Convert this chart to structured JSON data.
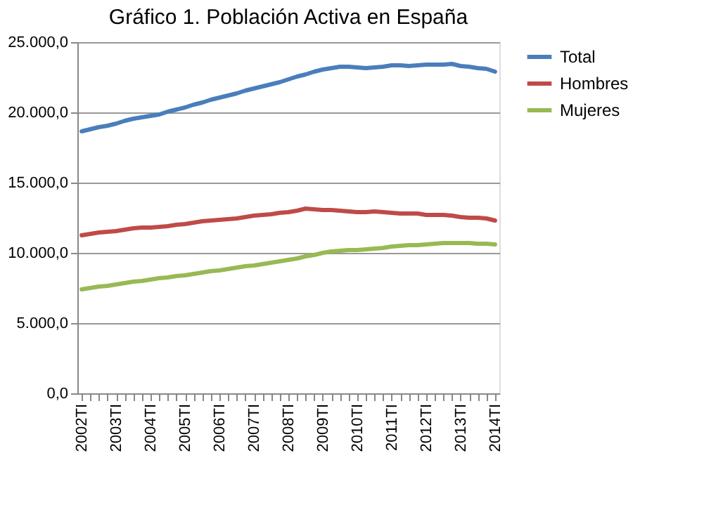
{
  "chart_data": {
    "type": "line",
    "title": "Gráfico 1. Población Activa en España",
    "categories": [
      "2002TI",
      null,
      null,
      null,
      "2003TI",
      null,
      null,
      null,
      "2004TI",
      null,
      null,
      null,
      "2005TI",
      null,
      null,
      null,
      "2006TI",
      null,
      null,
      null,
      "2007TI",
      null,
      null,
      null,
      "2008TI",
      null,
      null,
      null,
      "2009TI",
      null,
      null,
      null,
      "2010TI",
      null,
      null,
      null,
      "2011TI",
      null,
      null,
      null,
      "2012TI",
      null,
      null,
      null,
      "2013TI",
      null,
      null,
      null,
      "2014TI"
    ],
    "series": [
      {
        "name": "Total",
        "color": "#4a7ebb",
        "values": [
          18650,
          18800,
          18950,
          19050,
          19200,
          19400,
          19550,
          19650,
          19750,
          19850,
          20050,
          20200,
          20350,
          20550,
          20700,
          20900,
          21050,
          21200,
          21350,
          21550,
          21700,
          21850,
          22000,
          22150,
          22350,
          22550,
          22700,
          22900,
          23050,
          23150,
          23250,
          23250,
          23200,
          23150,
          23200,
          23250,
          23350,
          23350,
          23300,
          23350,
          23400,
          23400,
          23400,
          23450,
          23300,
          23250,
          23150,
          23100,
          22900
        ]
      },
      {
        "name": "Hombres",
        "color": "#be4b48",
        "values": [
          11250,
          11350,
          11450,
          11500,
          11550,
          11650,
          11750,
          11800,
          11800,
          11850,
          11900,
          12000,
          12050,
          12150,
          12250,
          12300,
          12350,
          12400,
          12450,
          12550,
          12650,
          12700,
          12750,
          12850,
          12900,
          13000,
          13150,
          13100,
          13050,
          13050,
          13000,
          12950,
          12900,
          12900,
          12950,
          12900,
          12850,
          12800,
          12800,
          12800,
          12700,
          12700,
          12700,
          12650,
          12550,
          12500,
          12500,
          12450,
          12300
        ]
      },
      {
        "name": "Mujeres",
        "color": "#98b954",
        "values": [
          7400,
          7500,
          7600,
          7650,
          7750,
          7850,
          7950,
          8000,
          8100,
          8200,
          8250,
          8350,
          8400,
          8500,
          8600,
          8700,
          8750,
          8850,
          8950,
          9050,
          9100,
          9200,
          9300,
          9400,
          9500,
          9600,
          9750,
          9850,
          10000,
          10100,
          10150,
          10200,
          10200,
          10250,
          10300,
          10350,
          10450,
          10500,
          10550,
          10550,
          10600,
          10650,
          10700,
          10700,
          10700,
          10700,
          10650,
          10650,
          10600
        ]
      }
    ],
    "ylim": [
      0,
      25000
    ],
    "yticks": [
      {
        "value": 0,
        "label": "0,0"
      },
      {
        "value": 5000,
        "label": "5.000,0"
      },
      {
        "value": 10000,
        "label": "10.000,0"
      },
      {
        "value": 15000,
        "label": "15.000,0"
      },
      {
        "value": 20000,
        "label": "20.000,0"
      },
      {
        "value": 25000,
        "label": "25.000,0"
      }
    ],
    "grid": "y",
    "legend": "right",
    "line_style": "solid",
    "marker": "none"
  }
}
